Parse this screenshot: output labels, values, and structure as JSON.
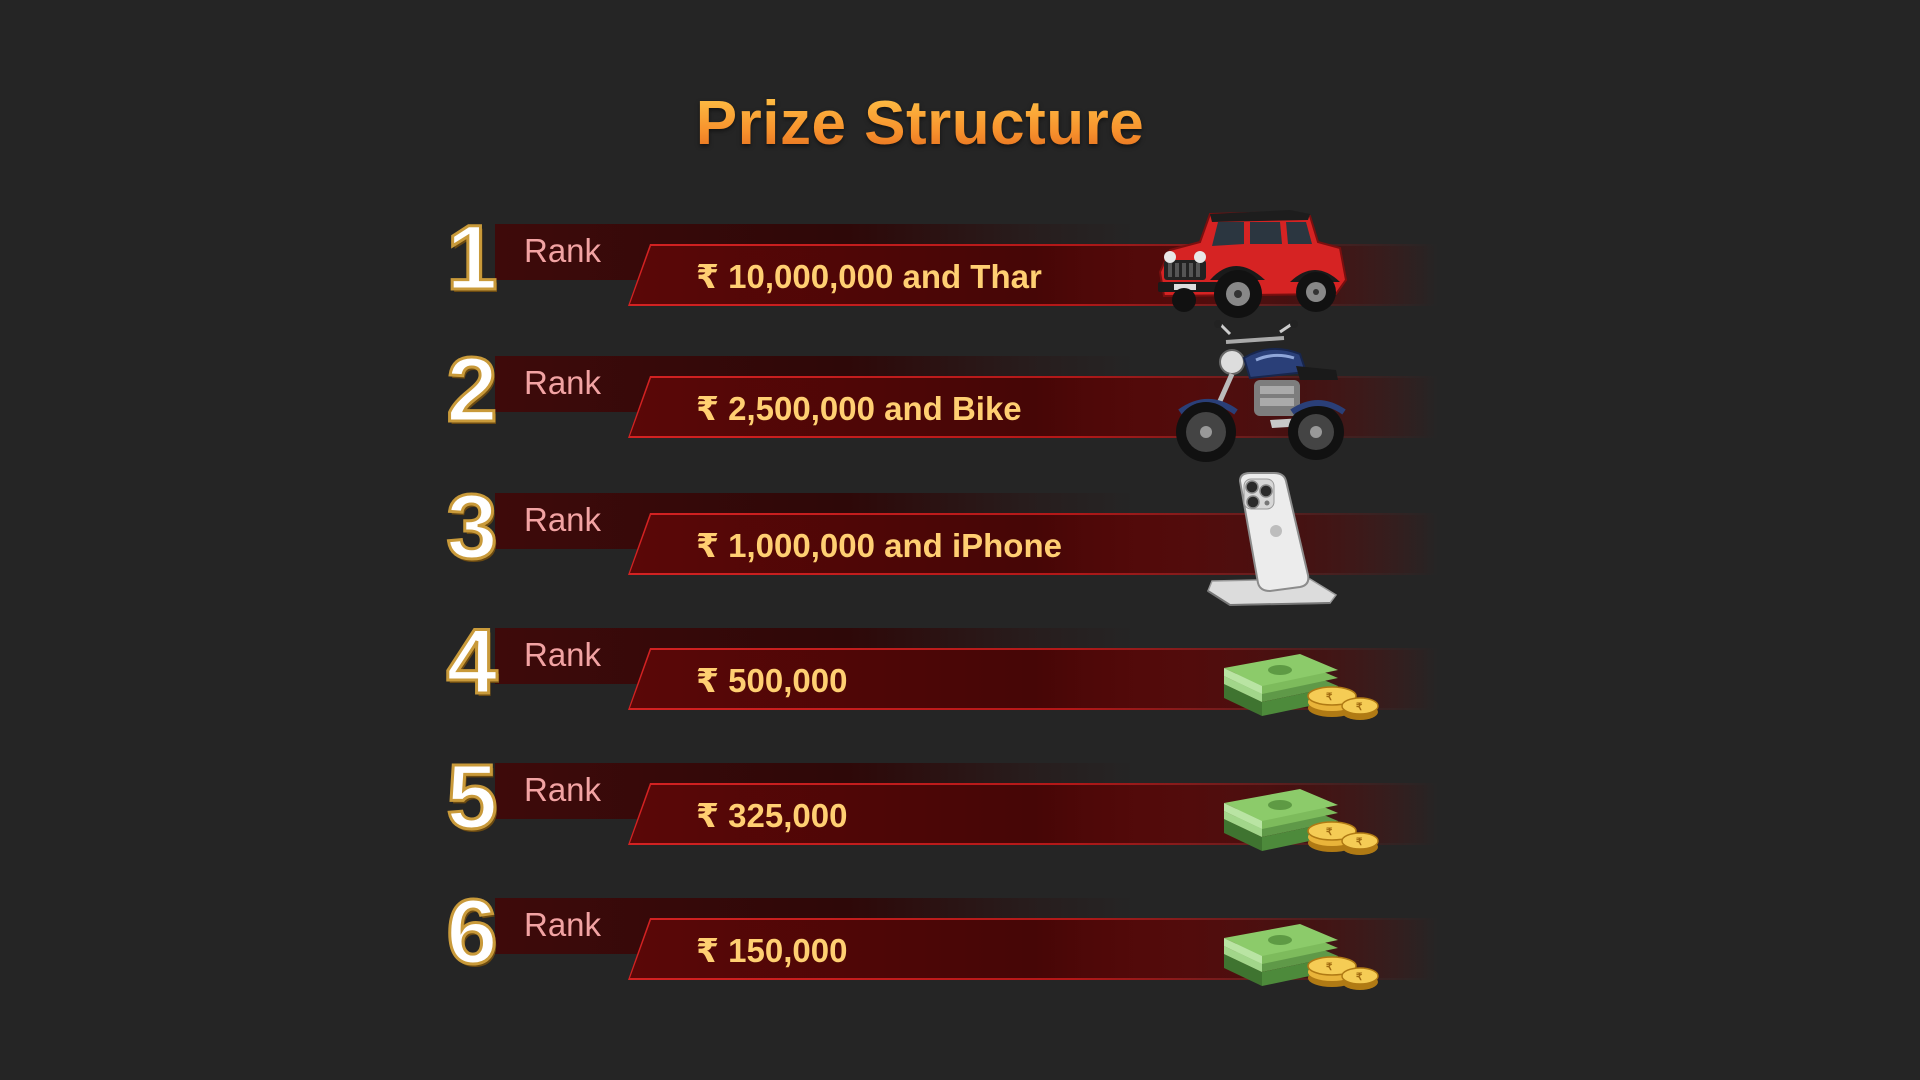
{
  "title": "Prize Structure",
  "ranks": [
    {
      "number": "1",
      "label": "Rank",
      "prize": "₹ 10,000,000 and Thar",
      "icon": "car-icon"
    },
    {
      "number": "2",
      "label": "Rank",
      "prize": "₹ 2,500,000 and Bike",
      "icon": "motorcycle-icon"
    },
    {
      "number": "3",
      "label": "Rank",
      "prize": "₹ 1,000,000 and iPhone",
      "icon": "smartphone-icon"
    },
    {
      "number": "4",
      "label": "Rank",
      "prize": "₹ 500,000",
      "icon": "money-icon"
    },
    {
      "number": "5",
      "label": "Rank",
      "prize": "₹ 325,000",
      "icon": "money-icon"
    },
    {
      "number": "6",
      "label": "Rank",
      "prize": "₹ 150,000",
      "icon": "money-icon"
    }
  ],
  "colors": {
    "background": "#252525",
    "title": "#f7922d",
    "bar_border": "#d42222",
    "prize_text": "#ffcf72",
    "rank_label": "#f2a3a3"
  }
}
